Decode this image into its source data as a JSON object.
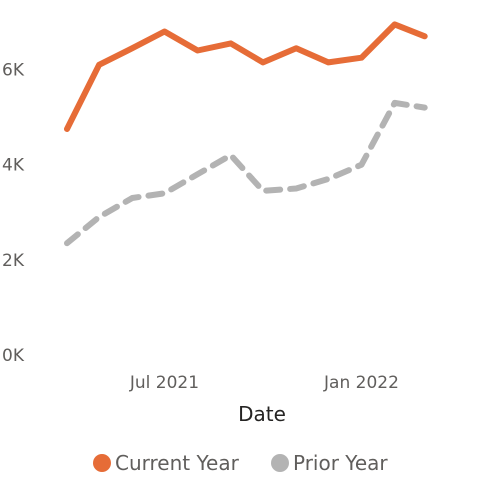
{
  "chart_data": {
    "type": "line",
    "xlabel": "Date",
    "ylabel": "",
    "ylim": [
      0,
      7000
    ],
    "yticks": [
      {
        "value": 0,
        "label": "0K"
      },
      {
        "value": 2000,
        "label": "2K"
      },
      {
        "value": 4000,
        "label": "4K"
      },
      {
        "value": 6000,
        "label": "6K"
      }
    ],
    "xlim": [
      "2021-04-01",
      "2022-05-01"
    ],
    "xticks": [
      {
        "value": "2021-07-01",
        "label": "Jul 2021"
      },
      {
        "value": "2022-01-01",
        "label": "Jan 2022"
      }
    ],
    "x": [
      "2021-04-01",
      "2021-05-01",
      "2021-06-01",
      "2021-07-01",
      "2021-08-01",
      "2021-09-01",
      "2021-10-01",
      "2021-11-01",
      "2021-12-01",
      "2022-01-01",
      "2022-02-01",
      "2022-03-01",
      "2022-04-01"
    ],
    "legend_position": "bottom",
    "series": [
      {
        "name": "Current Year",
        "color": "#E66C37",
        "style": "solid",
        "values": [
          4750,
          6100,
          6450,
          6800,
          6400,
          6550,
          6150,
          6450,
          6150,
          6250,
          6950,
          6700,
          null
        ]
      },
      {
        "name": "Prior Year",
        "color": "#B3B3B3",
        "style": "dashed",
        "values": [
          2350,
          2900,
          3300,
          3400,
          3800,
          4200,
          3450,
          3500,
          3700,
          4000,
          5300,
          5200,
          null
        ]
      }
    ]
  }
}
